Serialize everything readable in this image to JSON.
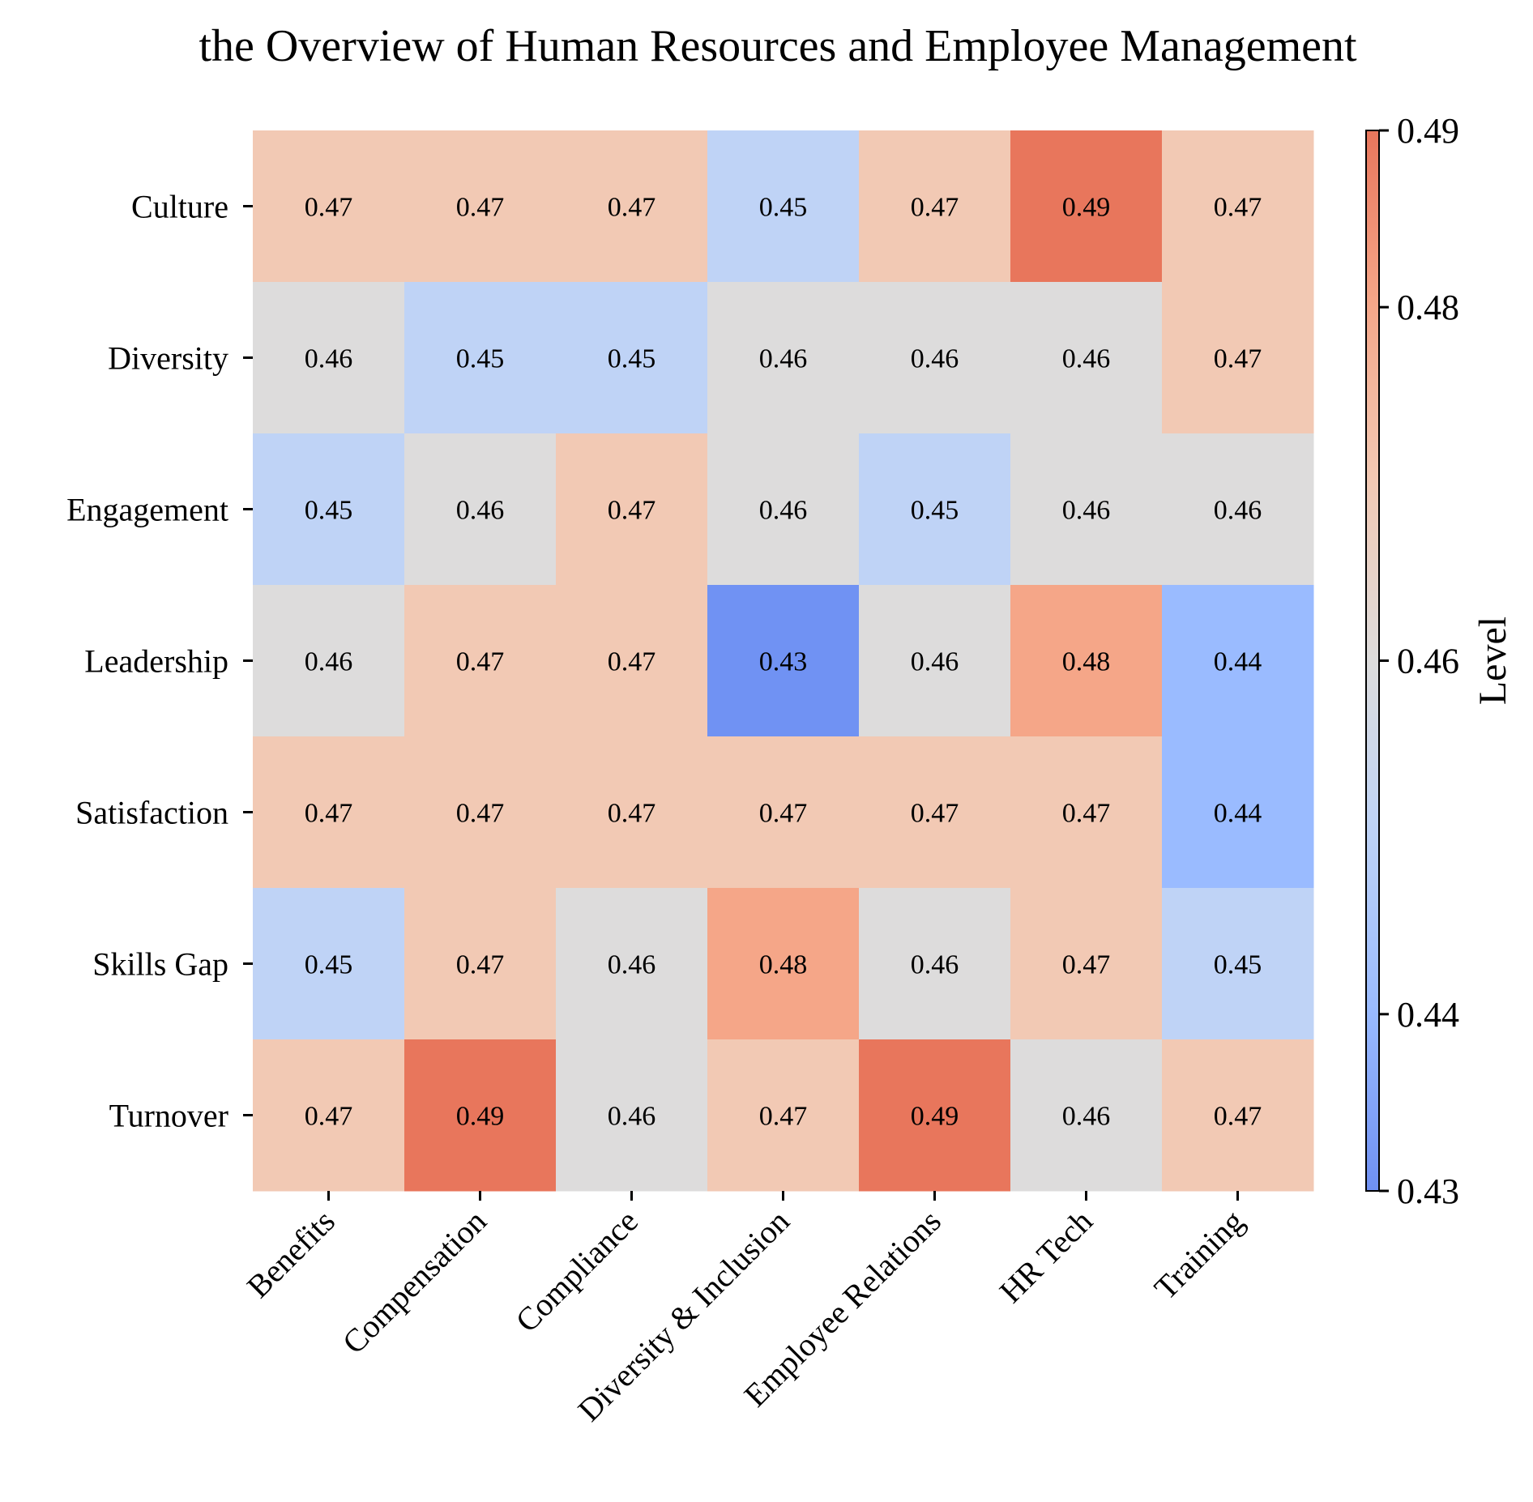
{
  "chart_data": {
    "type": "heatmap",
    "title": "the Overview of Human Resources and Employee Management",
    "x_categories": [
      "Benefits",
      "Compensation",
      "Compliance",
      "Diversity & Inclusion",
      "Employee Relations",
      "HR Tech",
      "Training"
    ],
    "y_categories": [
      "Culture",
      "Diversity",
      "Engagement",
      "Leadership",
      "Satisfaction",
      "Skills Gap",
      "Turnover"
    ],
    "values": [
      [
        0.47,
        0.47,
        0.47,
        0.45,
        0.47,
        0.49,
        0.47
      ],
      [
        0.46,
        0.45,
        0.45,
        0.46,
        0.46,
        0.46,
        0.47
      ],
      [
        0.45,
        0.46,
        0.47,
        0.46,
        0.45,
        0.46,
        0.46
      ],
      [
        0.46,
        0.47,
        0.47,
        0.43,
        0.46,
        0.48,
        0.44
      ],
      [
        0.47,
        0.47,
        0.47,
        0.47,
        0.47,
        0.47,
        0.44
      ],
      [
        0.45,
        0.47,
        0.46,
        0.48,
        0.46,
        0.47,
        0.45
      ],
      [
        0.47,
        0.49,
        0.46,
        0.47,
        0.49,
        0.46,
        0.47
      ]
    ],
    "value_labels": [
      [
        "0.47",
        "0.47",
        "0.47",
        "0.45",
        "0.47",
        "0.49",
        "0.47"
      ],
      [
        "0.46",
        "0.45",
        "0.45",
        "0.46",
        "0.46",
        "0.46",
        "0.47"
      ],
      [
        "0.45",
        "0.46",
        "0.47",
        "0.46",
        "0.45",
        "0.46",
        "0.46"
      ],
      [
        "0.46",
        "0.47",
        "0.47",
        "0.43",
        "0.46",
        "0.48",
        "0.44"
      ],
      [
        "0.47",
        "0.47",
        "0.47",
        "0.47",
        "0.47",
        "0.47",
        "0.44"
      ],
      [
        "0.45",
        "0.47",
        "0.46",
        "0.48",
        "0.46",
        "0.47",
        "0.45"
      ],
      [
        "0.47",
        "0.49",
        "0.46",
        "0.47",
        "0.49",
        "0.46",
        "0.47"
      ]
    ],
    "colormap": "coolwarm",
    "color_range": [
      0.43,
      0.49
    ],
    "colorbar": {
      "label": "Level",
      "ticks": [
        0.43,
        0.44,
        0.46,
        0.48,
        0.49
      ],
      "tick_labels": [
        "0.43",
        "0.44",
        "0.46",
        "0.48",
        "0.49"
      ]
    },
    "value_colors": {
      "0.43": "#7092f3",
      "0.44": "#9abbff",
      "0.45": "#bfd3f6",
      "0.46": "#dddcdc",
      "0.47": "#f2c9b4",
      "0.48": "#f5a688",
      "0.49": "#e8765c"
    }
  }
}
